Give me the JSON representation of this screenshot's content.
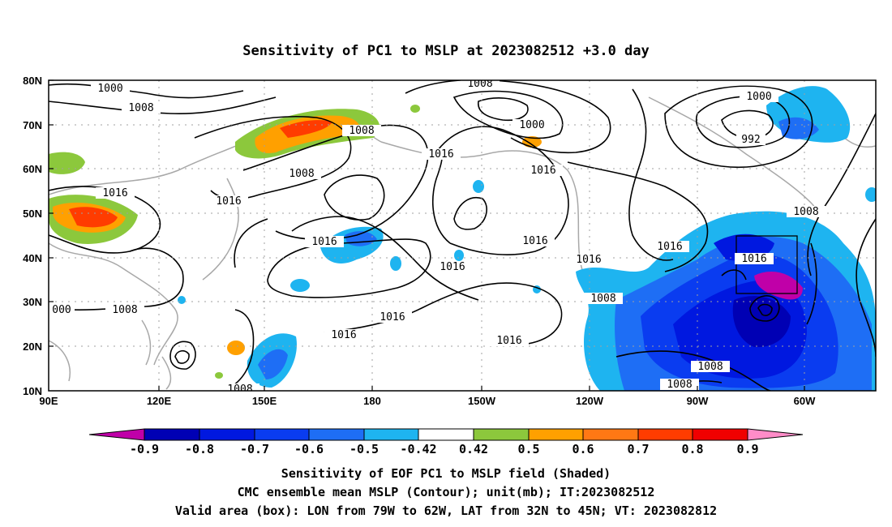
{
  "title": "Sensitivity of PC1 to MSLP at 2023082512 +3.0 day",
  "map": {
    "lat_labels": [
      "80N",
      "70N",
      "60N",
      "50N",
      "40N",
      "30N",
      "20N",
      "10N"
    ],
    "lon_labels": [
      "90E",
      "120E",
      "150E",
      "180",
      "150W",
      "120W",
      "90W",
      "60W"
    ],
    "contour_labels": [
      "1000",
      "1008",
      "1016",
      "1016",
      "1008",
      "1008",
      "1016",
      "1008",
      "1000",
      "1008",
      "1016",
      "1016",
      "1000",
      "992",
      "1016",
      "1016",
      "1016",
      "1016",
      "1016",
      "1016",
      "1008",
      "1016",
      "1008",
      "1008",
      "1008",
      "000",
      "1016",
      "1008"
    ],
    "box_color": "#000000"
  },
  "colorbar": {
    "labels": [
      "-0.9",
      "-0.8",
      "-0.7",
      "-0.6",
      "-0.5",
      "-0.42",
      "0.42",
      "0.5",
      "0.6",
      "0.7",
      "0.8",
      "0.9"
    ],
    "colors": [
      "#c000a8",
      "#0000b4",
      "#0018e0",
      "#0a3cf0",
      "#1e6ef5",
      "#1eb4f0",
      "#ffffff",
      "#8cc83c",
      "#ffa000",
      "#ff7814",
      "#ff3c00",
      "#f00000",
      "#ff8cc8"
    ]
  },
  "caption": [
    "Sensitivity of EOF PC1 to MSLP field (Shaded)",
    "CMC ensemble mean MSLP (Contour); unit(mb); IT:2023082512",
    "Valid area (box): LON from 79W to 62W, LAT from 32N to 45N; VT: 2023082812"
  ]
}
